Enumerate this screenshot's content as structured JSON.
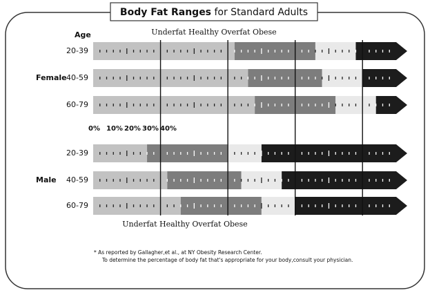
{
  "chart_data": {
    "type": "bar",
    "title_bold": "Body Fat Ranges",
    "title_rest": "for Standard Adults",
    "age_label": "Age",
    "groups": [
      {
        "name": "Female",
        "categories": [
          "20-39",
          "40-59",
          "60-79"
        ]
      },
      {
        "name": "Male",
        "categories": [
          "20-39",
          "40-59",
          "60-79"
        ]
      }
    ],
    "series": [
      {
        "name": "Underfat",
        "color": "#c2c2c2",
        "values": [
          21,
          23,
          24,
          8,
          11,
          13
        ]
      },
      {
        "name": "Healthy",
        "color": "#7d7d7d",
        "values": [
          12,
          11,
          12,
          12,
          11,
          12
        ]
      },
      {
        "name": "Overfat",
        "color": "#e9e9e9",
        "values": [
          6,
          6,
          6,
          5,
          6,
          5
        ]
      },
      {
        "name": "Obese",
        "color": "#1c1c1c"
      }
    ],
    "xlim": [
      0,
      45
    ],
    "xticks": [
      {
        "value": 0,
        "label": "0%"
      },
      {
        "value": 10,
        "label": "10%"
      },
      {
        "value": 20,
        "label": "20%"
      },
      {
        "value": 30,
        "label": "30%"
      },
      {
        "value": 40,
        "label": "40%"
      }
    ],
    "notes": [
      "* As reported by Gallagher,et al., at NY Obesity Research Center.",
      "To determine the percentage of body fat that's appropriate for your body,consult your physician."
    ]
  }
}
